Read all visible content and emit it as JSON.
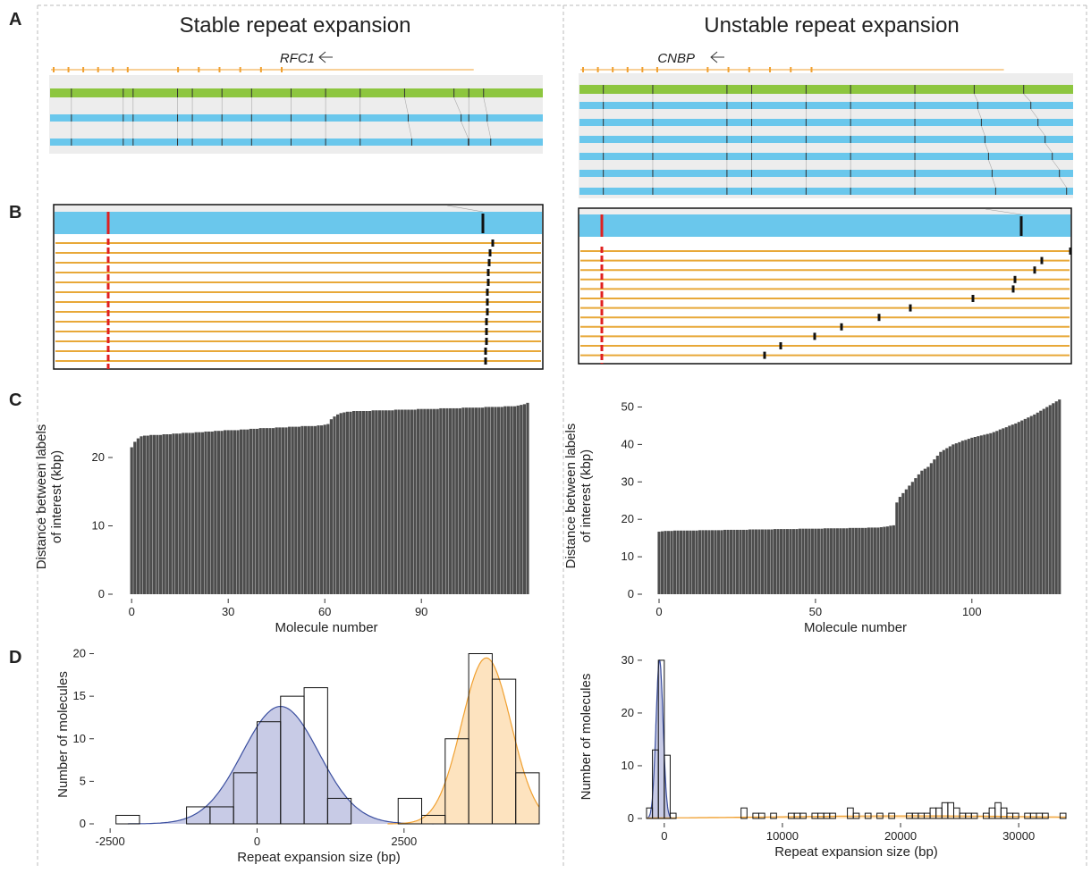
{
  "panel_labels": [
    "A",
    "B",
    "C",
    "D"
  ],
  "columns": [
    {
      "title": "Stable repeat expansion",
      "gene": "RFC1"
    },
    {
      "title": "Unstable repeat expansion",
      "gene": "CNBP"
    }
  ],
  "chart_data": [
    {
      "type": "bar",
      "color": "#4d4d4d",
      "xlabel": "Molecule number",
      "ylabel": [
        "Distance between labels",
        "of interest (kbp)"
      ],
      "xlim": [
        -4.5,
        125.5
      ],
      "ylim": [
        0,
        28.5
      ],
      "xticks": [
        0,
        30,
        60,
        90
      ],
      "yticks": [
        0,
        10,
        20
      ],
      "x": [
        0,
        1,
        2,
        3,
        4,
        5,
        6,
        7,
        8,
        9,
        10,
        11,
        12,
        13,
        14,
        15,
        16,
        17,
        18,
        19,
        20,
        21,
        22,
        23,
        24,
        25,
        26,
        27,
        28,
        29,
        30,
        31,
        32,
        33,
        34,
        35,
        36,
        37,
        38,
        39,
        40,
        41,
        42,
        43,
        44,
        45,
        46,
        47,
        48,
        49,
        50,
        51,
        52,
        53,
        54,
        55,
        56,
        57,
        58,
        59,
        60,
        61,
        62,
        63,
        64,
        65,
        66,
        67,
        68,
        69,
        70,
        71,
        72,
        73,
        74,
        75,
        76,
        77,
        78,
        79,
        80,
        81,
        82,
        83,
        84,
        85,
        86,
        87,
        88,
        89,
        90,
        91,
        92,
        93,
        94,
        95,
        96,
        97,
        98,
        99,
        100,
        101,
        102,
        103,
        104,
        105,
        106,
        107,
        108,
        109,
        110,
        111,
        112,
        113,
        114,
        115,
        116,
        117,
        118,
        119,
        120,
        121,
        122,
        123
      ],
      "values": [
        21.5,
        22.3,
        22.8,
        23.1,
        23.2,
        23.2,
        23.3,
        23.3,
        23.3,
        23.3,
        23.4,
        23.4,
        23.4,
        23.5,
        23.5,
        23.5,
        23.6,
        23.6,
        23.6,
        23.6,
        23.7,
        23.7,
        23.7,
        23.8,
        23.8,
        23.8,
        23.9,
        23.9,
        23.9,
        24.0,
        24.0,
        24.0,
        24.0,
        24.0,
        24.1,
        24.1,
        24.1,
        24.2,
        24.2,
        24.2,
        24.3,
        24.3,
        24.3,
        24.3,
        24.3,
        24.4,
        24.4,
        24.4,
        24.4,
        24.5,
        24.5,
        24.5,
        24.5,
        24.6,
        24.6,
        24.6,
        24.6,
        24.6,
        24.7,
        24.7,
        24.8,
        24.9,
        25.6,
        26.0,
        26.3,
        26.5,
        26.6,
        26.7,
        26.7,
        26.8,
        26.8,
        26.8,
        26.8,
        26.8,
        26.8,
        26.9,
        26.9,
        26.9,
        26.9,
        26.9,
        26.9,
        26.9,
        27.0,
        27.0,
        27.0,
        27.0,
        27.0,
        27.0,
        27.0,
        27.1,
        27.1,
        27.1,
        27.1,
        27.1,
        27.1,
        27.1,
        27.2,
        27.2,
        27.2,
        27.2,
        27.2,
        27.2,
        27.2,
        27.3,
        27.3,
        27.3,
        27.3,
        27.3,
        27.3,
        27.3,
        27.4,
        27.4,
        27.4,
        27.4,
        27.4,
        27.4,
        27.5,
        27.5,
        27.5,
        27.5,
        27.6,
        27.7,
        27.8,
        28.0
      ]
    },
    {
      "type": "bar",
      "color": "#4d4d4d",
      "xlabel": "Molecule number",
      "ylabel": [
        "Distance between labels",
        "of interest (kbp)"
      ],
      "xlim": [
        -4,
        129.5
      ],
      "ylim": [
        0,
        52.5
      ],
      "xticks": [
        0,
        50,
        100
      ],
      "yticks": [
        0,
        10,
        20,
        30,
        40,
        50
      ],
      "x": [
        0,
        1,
        2,
        3,
        4,
        5,
        6,
        7,
        8,
        9,
        10,
        11,
        12,
        13,
        14,
        15,
        16,
        17,
        18,
        19,
        20,
        21,
        22,
        23,
        24,
        25,
        26,
        27,
        28,
        29,
        30,
        31,
        32,
        33,
        34,
        35,
        36,
        37,
        38,
        39,
        40,
        41,
        42,
        43,
        44,
        45,
        46,
        47,
        48,
        49,
        50,
        51,
        52,
        53,
        54,
        55,
        56,
        57,
        58,
        59,
        60,
        61,
        62,
        63,
        64,
        65,
        66,
        67,
        68,
        69,
        70,
        71,
        72,
        73,
        74,
        75,
        76,
        77,
        78,
        79,
        80,
        81,
        82,
        83,
        84,
        85,
        86,
        87,
        88,
        89,
        90,
        91,
        92,
        93,
        94,
        95,
        96,
        97,
        98,
        99,
        100,
        101,
        102,
        103,
        104,
        105,
        106,
        107,
        108,
        109,
        110,
        111,
        112,
        113,
        114,
        115,
        116,
        117,
        118,
        119,
        120,
        121,
        122,
        123,
        124,
        125,
        126,
        127,
        128
      ],
      "values": [
        16.7,
        16.8,
        16.9,
        16.9,
        16.9,
        17.0,
        17.0,
        17.0,
        17.0,
        17.0,
        17.0,
        17.0,
        17.0,
        17.1,
        17.1,
        17.1,
        17.1,
        17.1,
        17.1,
        17.1,
        17.1,
        17.2,
        17.2,
        17.2,
        17.2,
        17.2,
        17.2,
        17.2,
        17.2,
        17.3,
        17.3,
        17.3,
        17.3,
        17.3,
        17.3,
        17.3,
        17.3,
        17.4,
        17.4,
        17.4,
        17.4,
        17.4,
        17.4,
        17.4,
        17.4,
        17.5,
        17.5,
        17.5,
        17.5,
        17.5,
        17.5,
        17.5,
        17.5,
        17.6,
        17.6,
        17.6,
        17.6,
        17.6,
        17.6,
        17.6,
        17.6,
        17.7,
        17.7,
        17.7,
        17.7,
        17.7,
        17.7,
        17.8,
        17.8,
        17.8,
        17.8,
        17.9,
        18.0,
        18.1,
        18.3,
        18.4,
        24.5,
        26,
        27,
        28,
        29,
        30,
        31,
        32,
        33,
        33.5,
        34,
        35,
        36,
        37,
        38,
        38.5,
        39,
        39.5,
        40,
        40.3,
        40.6,
        41,
        41.2,
        41.5,
        41.8,
        42,
        42.2,
        42.4,
        42.6,
        42.8,
        43,
        43.3,
        43.6,
        44,
        44.3,
        44.6,
        45,
        45.3,
        45.6,
        46,
        46.4,
        46.8,
        47.2,
        47.6,
        48,
        48.5,
        49,
        49.5,
        50,
        50.5,
        51,
        51.5,
        52
      ]
    },
    {
      "type": "histogram",
      "xlabel": "Repeat expansion size (bp)",
      "ylabel": [
        "Number of molecules"
      ],
      "xlim": [
        -2700,
        4800
      ],
      "ylim": [
        0,
        21
      ],
      "xticks": [
        -2500,
        0,
        2500
      ],
      "yticks": [
        0,
        5,
        10,
        15,
        20
      ],
      "bins": [
        -2400,
        -2000,
        -1600,
        -1200,
        -800,
        -400,
        0,
        400,
        800,
        1200,
        1600,
        2000,
        2400,
        2800,
        3200,
        3600,
        4000,
        4400,
        4800
      ],
      "counts": [
        1,
        0,
        0,
        2,
        2,
        6,
        12,
        15,
        16,
        3,
        0,
        0,
        3,
        1,
        10,
        20,
        17,
        6
      ],
      "fits": [
        {
          "color": "#3b4fa0",
          "fill": "#c8cbe6",
          "mean": 400,
          "sd": 650,
          "peak": 13.8
        },
        {
          "color": "#f0a030",
          "fill": "#fde3bf",
          "mean": 3900,
          "sd": 420,
          "peak": 19.5
        }
      ]
    },
    {
      "type": "histogram",
      "xlabel": "Repeat expansion size (bp)",
      "ylabel": [
        "Number of molecules"
      ],
      "xlim": [
        -1500,
        34000
      ],
      "ylim": [
        0,
        31
      ],
      "xticks": [
        0,
        10000,
        20000,
        30000
      ],
      "yticks": [
        0,
        10,
        20,
        30
      ],
      "bins": [
        -1500,
        -1000,
        -500,
        0,
        500,
        1000,
        1500,
        2000,
        2500,
        3000,
        3500,
        4000,
        4500,
        5000,
        5500,
        6000,
        6500,
        7000,
        7500,
        8000,
        8500,
        9000,
        9500,
        10000,
        10500,
        11000,
        11500,
        12000,
        12500,
        13000,
        13500,
        14000,
        14500,
        15000,
        15500,
        16000,
        16500,
        17000,
        17500,
        18000,
        18500,
        19000,
        19500,
        20000,
        20500,
        21000,
        21500,
        22000,
        22500,
        23000,
        23500,
        24000,
        24500,
        25000,
        25500,
        26000,
        26500,
        27000,
        27500,
        28000,
        28500,
        29000,
        29500,
        30000,
        30500,
        31000,
        31500,
        32000,
        32500,
        33000,
        33500,
        34000
      ],
      "counts": [
        2,
        13,
        30,
        12,
        1,
        0,
        0,
        0,
        0,
        0,
        0,
        0,
        0,
        0,
        0,
        0,
        2,
        0,
        1,
        1,
        0,
        1,
        0,
        0,
        1,
        1,
        1,
        0,
        1,
        1,
        1,
        1,
        0,
        0,
        2,
        1,
        0,
        1,
        0,
        1,
        0,
        1,
        0,
        0,
        1,
        1,
        1,
        1,
        2,
        2,
        3,
        3,
        2,
        1,
        1,
        1,
        0,
        1,
        2,
        3,
        2,
        1,
        1,
        0,
        1,
        1,
        1,
        1,
        0,
        0,
        1
      ],
      "fits": [
        {
          "color": "#3b4fa0",
          "fill": "#c8cbe6",
          "mean": -400,
          "sd": 300,
          "peak": 30
        },
        {
          "color": "#f0a030",
          "fill": "#fde3bf",
          "mean": 21000,
          "sd": 12000,
          "peak": 0.5
        }
      ]
    }
  ]
}
